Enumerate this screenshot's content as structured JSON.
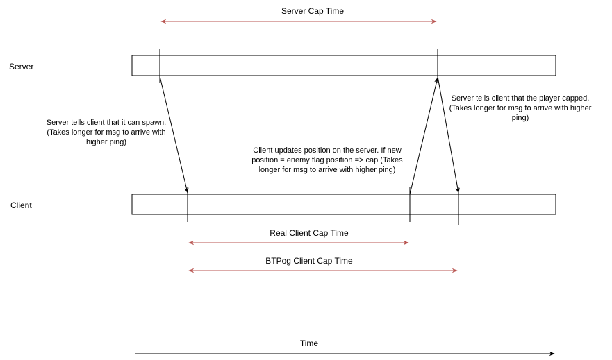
{
  "lanes": {
    "server_label": "Server",
    "client_label": "Client"
  },
  "spans": {
    "server_cap_time": "Server Cap Time",
    "real_client_cap_time": "Real Client Cap Time",
    "btpog_client_cap_time": "BTPog Client Cap Time",
    "time_axis": "Time"
  },
  "notes": {
    "spawn_line1": "Server tells client that it can spawn.",
    "spawn_line2": "(Takes longer for msg to arrive with",
    "spawn_line3": "higher ping)",
    "update_line1": "Client updates position on the server. If new",
    "update_line2": "position = enemy flag position => cap (Takes",
    "update_line3": "longer for msg to arrive with higher ping)",
    "capped_line1": "Server tells client that the player capped.",
    "capped_line2": "(Takes longer for msg to arrive with higher",
    "capped_line3": "ping)"
  },
  "colors": {
    "span_arrow": "#b85450",
    "line": "#000000",
    "lane_fill": "#ffffff"
  }
}
